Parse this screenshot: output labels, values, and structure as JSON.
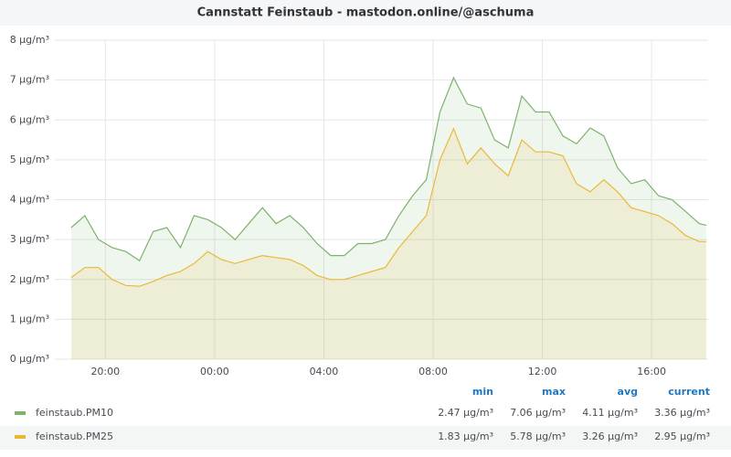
{
  "chart_data": {
    "type": "line",
    "title": "Cannstatt Feinstaub - mastodon.online/@aschuma",
    "x": [
      18.75,
      19.25,
      19.75,
      20.25,
      20.75,
      21.25,
      21.75,
      22.25,
      22.75,
      23.25,
      23.75,
      24.25,
      24.75,
      25.25,
      25.75,
      26.25,
      26.75,
      27.25,
      27.75,
      28.25,
      28.75,
      29.25,
      29.75,
      30.25,
      30.75,
      31.25,
      31.75,
      32.25,
      32.75,
      33.25,
      33.75,
      34.25,
      34.75,
      35.25,
      35.75,
      36.25,
      36.75,
      37.25,
      37.75,
      38.25,
      38.75,
      39.25,
      39.75,
      40.25,
      40.75,
      41.25,
      41.75,
      42.0
    ],
    "xlim": [
      18.15,
      42.07
    ],
    "xticks": [
      {
        "value": 20,
        "label": "20:00"
      },
      {
        "value": 24,
        "label": "00:00"
      },
      {
        "value": 28,
        "label": "04:00"
      },
      {
        "value": 32,
        "label": "08:00"
      },
      {
        "value": 36,
        "label": "12:00"
      },
      {
        "value": 40,
        "label": "16:00"
      }
    ],
    "ylim": [
      0,
      8
    ],
    "yticks": [
      {
        "value": 0,
        "label": "0 µg/m³"
      },
      {
        "value": 1,
        "label": "1 µg/m³"
      },
      {
        "value": 2,
        "label": "2 µg/m³"
      },
      {
        "value": 3,
        "label": "3 µg/m³"
      },
      {
        "value": 4,
        "label": "4 µg/m³"
      },
      {
        "value": 5,
        "label": "5 µg/m³"
      },
      {
        "value": 6,
        "label": "6 µg/m³"
      },
      {
        "value": 7,
        "label": "7 µg/m³"
      },
      {
        "value": 8,
        "label": "8 µg/m³"
      }
    ],
    "grid": true,
    "legend_columns": [
      "min",
      "max",
      "avg",
      "current"
    ],
    "series": [
      {
        "name": "feinstaub.PM10",
        "color": "#7eb26d",
        "values": [
          3.3,
          3.6,
          3.0,
          2.8,
          2.7,
          2.47,
          3.2,
          3.3,
          2.8,
          3.6,
          3.5,
          3.3,
          3.0,
          3.4,
          3.8,
          3.4,
          3.6,
          3.3,
          2.9,
          2.6,
          2.6,
          2.9,
          2.9,
          3.0,
          3.6,
          4.1,
          4.5,
          6.2,
          7.06,
          6.4,
          6.3,
          5.5,
          5.3,
          6.6,
          6.2,
          6.2,
          5.6,
          5.4,
          5.8,
          5.6,
          4.8,
          4.4,
          4.5,
          4.1,
          4.0,
          3.7,
          3.4,
          3.36
        ],
        "stats": [
          "2.47 µg/m³",
          "7.06 µg/m³",
          "4.11 µg/m³",
          "3.36 µg/m³"
        ]
      },
      {
        "name": "feinstaub.PM25",
        "color": "#eab839",
        "values": [
          2.05,
          2.3,
          2.3,
          2.0,
          1.85,
          1.83,
          1.95,
          2.1,
          2.2,
          2.4,
          2.7,
          2.5,
          2.4,
          2.5,
          2.6,
          2.55,
          2.5,
          2.35,
          2.1,
          2.0,
          2.0,
          2.1,
          2.2,
          2.3,
          2.8,
          3.2,
          3.6,
          5.0,
          5.78,
          4.9,
          5.3,
          4.9,
          4.6,
          5.5,
          5.2,
          5.2,
          5.1,
          4.4,
          4.2,
          4.5,
          4.2,
          3.8,
          3.7,
          3.6,
          3.4,
          3.1,
          2.95,
          2.95
        ],
        "stats": [
          "1.83 µg/m³",
          "5.78 µg/m³",
          "3.26 µg/m³",
          "2.95 µg/m³"
        ]
      }
    ]
  }
}
